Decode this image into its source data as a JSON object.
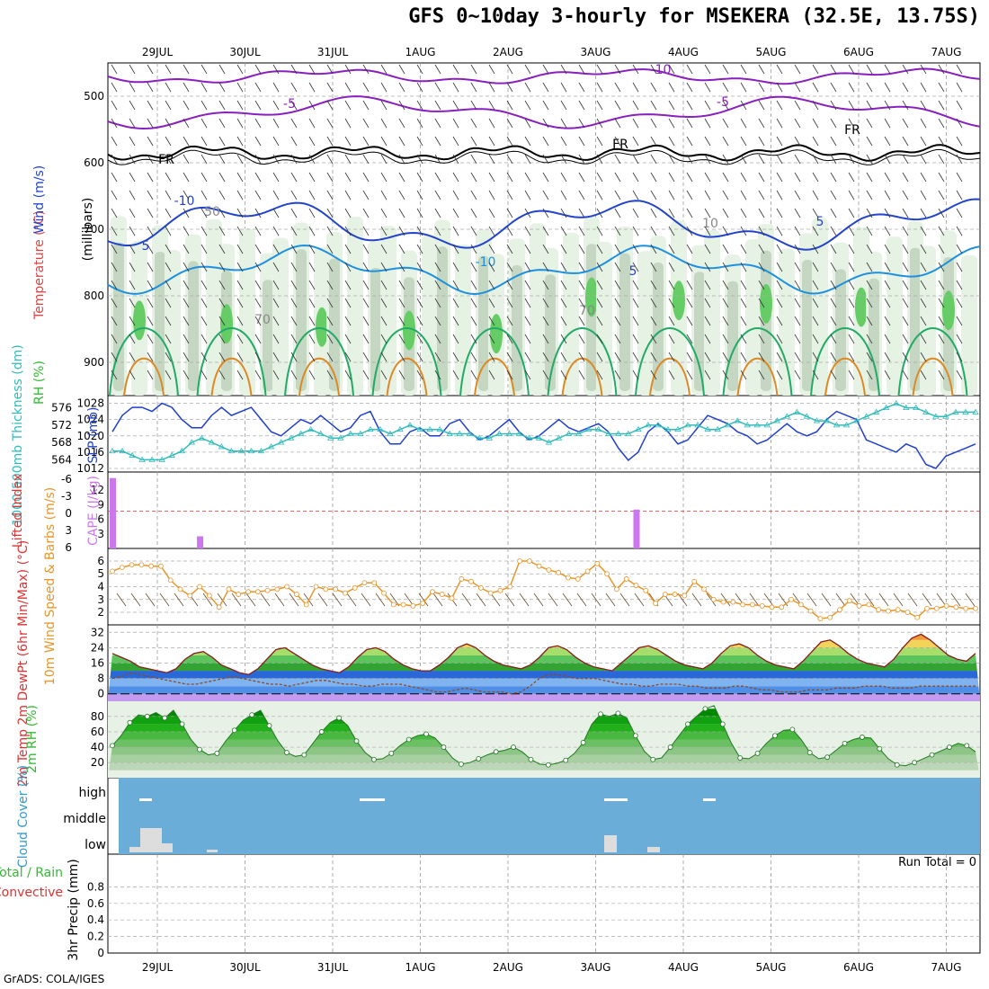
{
  "title": "GFS 0~10day 3-hourly for MSEKERA (32.5E, 13.75S)",
  "credit": "GrADS: COLA/IGES",
  "run_total": "Run Total = 0",
  "colors": {
    "wind500": "#8a1fbf",
    "freezing": "#000000",
    "temp_blue": "#2244cc",
    "temp_cyan": "#1e90e0",
    "temp_green": "#22aa66",
    "temp_orange": "#dd8822",
    "slp": "#1f3fcc",
    "thickness": "#33bbbb",
    "cape": "#cc77ee",
    "wind10": "#e8962a",
    "cloud_bg": "#6aadd8",
    "rh_green": "#33bb33"
  },
  "chart_data": [
    {
      "panel": "upper_air",
      "type": "heatmap",
      "ylabel_parts": [
        "RH (%)",
        "Temperature (°C)",
        "Wind (m/s)"
      ],
      "ylabel_right": "(millibars)",
      "x_labels": [
        "29JUL",
        "30JUL",
        "31JUL",
        "1AUG",
        "2AUG",
        "3AUG",
        "4AUG",
        "5AUG",
        "6AUG",
        "7AUG"
      ],
      "y_ticks": [
        500,
        600,
        700,
        800,
        900
      ],
      "ylim": [
        450,
        950
      ],
      "contour_labels": [
        "-10",
        "-5",
        "FR",
        "-10",
        "-5",
        "5",
        "-10",
        "5",
        "5",
        "50",
        "70",
        "70",
        "10",
        "FR",
        "FR"
      ]
    },
    {
      "panel": "slp_thickness",
      "type": "line",
      "ylabel_left": "1000-500mb Thickness (dm)",
      "ylabel_right": "SLP (mb)",
      "left_ticks": [
        564,
        568,
        572,
        576
      ],
      "right_ticks": [
        1012,
        1016,
        1020,
        1024,
        1028
      ],
      "series": [
        {
          "name": "SLP (mb)",
          "values": [
            1021,
            1025,
            1027,
            1027,
            1026,
            1028,
            1027,
            1024,
            1022,
            1022,
            1025,
            1027,
            1025,
            1026,
            1027,
            1024,
            1021,
            1020,
            1022,
            1024,
            1023,
            1025,
            1023,
            1021,
            1022,
            1025,
            1026,
            1021,
            1018,
            1018,
            1021,
            1022,
            1020,
            1020,
            1023,
            1024,
            1021,
            1019,
            1020,
            1022,
            1024,
            1021,
            1019,
            1020,
            1022,
            1024,
            1022,
            1021,
            1022,
            1023,
            1021,
            1017,
            1014,
            1016,
            1021,
            1023,
            1021,
            1018,
            1019,
            1022,
            1025,
            1024,
            1023,
            1021,
            1020,
            1018,
            1019,
            1021,
            1023,
            1021,
            1020,
            1021,
            1024,
            1026,
            1025,
            1024,
            1019,
            1018,
            1017,
            1016,
            1018,
            1017,
            1013,
            1012,
            1015,
            1016,
            1017,
            1018
          ]
        },
        {
          "name": "1000-500mb Thickness (dm)",
          "values": [
            566,
            566,
            565,
            564,
            564,
            564,
            565,
            566,
            568,
            569,
            568,
            567,
            566,
            566,
            566,
            566,
            567,
            568,
            569,
            570,
            571,
            570,
            569,
            569,
            570,
            570,
            571,
            571,
            570,
            571,
            572,
            571,
            571,
            571,
            570,
            570,
            570,
            569,
            569,
            570,
            570,
            570,
            569,
            569,
            568,
            569,
            570,
            570,
            571,
            571,
            570,
            570,
            570,
            571,
            572,
            572,
            571,
            571,
            572,
            572,
            571,
            571,
            572,
            573,
            572,
            572,
            572,
            573,
            574,
            575,
            574,
            573,
            573,
            572,
            572,
            573,
            574,
            575,
            576,
            577,
            576,
            576,
            575,
            574,
            574,
            575,
            575,
            575
          ]
        }
      ]
    },
    {
      "panel": "cape_li",
      "type": "bar",
      "ylabel_left": "Lifted Index",
      "ylabel_right": "CAPE (J/kg)",
      "left_ticks": [
        "-6",
        "-3",
        "0",
        "3",
        "6"
      ],
      "right_ticks": [
        3,
        6,
        9,
        12
      ],
      "series": [
        {
          "name": "CAPE (J/kg)",
          "values": [
            [
              0,
              14.5
            ],
            [
              9,
              2.5
            ],
            [
              54,
              8.0
            ]
          ]
        }
      ]
    },
    {
      "panel": "wind10",
      "type": "line",
      "ylabel": "10m Wind Speed & Barbs (m/s)",
      "yticks": [
        2,
        3,
        4,
        5,
        6
      ],
      "ylim": [
        1.3,
        6.7
      ],
      "series": [
        {
          "name": "10m Wind Speed",
          "values": [
            5.2,
            5.5,
            5.7,
            5.7,
            5.6,
            5.6,
            4.5,
            3.8,
            3.3,
            4.0,
            3.3,
            2.4,
            3.8,
            3.4,
            3.6,
            3.6,
            3.7,
            3.8,
            4.0,
            3.4,
            2.6,
            4.0,
            3.8,
            3.8,
            3.5,
            3.9,
            4.3,
            4.3,
            3.5,
            2.6,
            2.6,
            2.5,
            2.7,
            3.6,
            3.4,
            3.1,
            4.6,
            4.4,
            3.9,
            3.5,
            3.7,
            4.0,
            6.0,
            6.0,
            5.6,
            5.3,
            5.1,
            4.7,
            4.6,
            5.2,
            5.8,
            5.0,
            3.8,
            4.6,
            4.1,
            3.7,
            2.7,
            3.4,
            3.4,
            3.3,
            4.4,
            3.8,
            3.0,
            2.8,
            2.8,
            2.6,
            2.6,
            2.5,
            2.4,
            2.4,
            3.0,
            2.6,
            2.1,
            1.5,
            1.6,
            2.2,
            2.9,
            2.5,
            2.6,
            2.2,
            2.1,
            2.2,
            2.0,
            1.6,
            2.3,
            2.3,
            2.5,
            2.4,
            2.3,
            2.3
          ]
        }
      ]
    },
    {
      "panel": "temp",
      "type": "area",
      "ylabel": "2m Temp 2m DewPt (6hr Min/Max) (°C)",
      "yticks": [
        0,
        8,
        16,
        24,
        32
      ],
      "ylim": [
        -2,
        34
      ],
      "series": [
        {
          "name": "2m Temp",
          "values": [
            21,
            19,
            17,
            14,
            13,
            12,
            11,
            13,
            18,
            21,
            22,
            19,
            15,
            13,
            11,
            10,
            13,
            18,
            23,
            24,
            21,
            18,
            15,
            13,
            12,
            11,
            14,
            19,
            23,
            24,
            22,
            18,
            15,
            13,
            12,
            12,
            15,
            19,
            24,
            26,
            24,
            20,
            17,
            15,
            14,
            13,
            15,
            19,
            24,
            25,
            23,
            19,
            16,
            14,
            13,
            12,
            16,
            20,
            24,
            25,
            23,
            20,
            17,
            15,
            14,
            13,
            16,
            21,
            25,
            26,
            24,
            20,
            17,
            15,
            14,
            13,
            17,
            22,
            27,
            28,
            25,
            21,
            18,
            16,
            15,
            14,
            18,
            24,
            29,
            31,
            28,
            24,
            20,
            18,
            17,
            21
          ]
        },
        {
          "name": "2m DewPt",
          "values": [
            8,
            9,
            11,
            10,
            9,
            8,
            7,
            6,
            5,
            5,
            6,
            7,
            8,
            9,
            8,
            7,
            6,
            5,
            5,
            4,
            5,
            6,
            7,
            7,
            6,
            5,
            5,
            4,
            4,
            5,
            5,
            5,
            4,
            3,
            2,
            1,
            1,
            2,
            3,
            2,
            1,
            1,
            1,
            0,
            1,
            4,
            8,
            10,
            10,
            9,
            8,
            8,
            8,
            7,
            6,
            5,
            5,
            4,
            4,
            5,
            5,
            5,
            4,
            4,
            3,
            3,
            3,
            4,
            4,
            3,
            2,
            2,
            1,
            1,
            1,
            2,
            2,
            2,
            3,
            3,
            3,
            4,
            4,
            4,
            3,
            3,
            3,
            4,
            4,
            4,
            4,
            4,
            4,
            4
          ]
        }
      ]
    },
    {
      "panel": "rh",
      "type": "area",
      "ylabel": "2m RH (%)",
      "yticks": [
        20,
        40,
        60,
        80
      ],
      "ylim": [
        5,
        95
      ],
      "series": [
        {
          "name": "2m RH",
          "values": [
            42,
            55,
            72,
            82,
            80,
            85,
            78,
            88,
            70,
            50,
            37,
            30,
            32,
            48,
            62,
            75,
            82,
            88,
            68,
            48,
            33,
            28,
            30,
            45,
            60,
            72,
            78,
            68,
            48,
            33,
            24,
            25,
            32,
            42,
            50,
            55,
            57,
            52,
            40,
            26,
            18,
            20,
            25,
            30,
            34,
            36,
            40,
            34,
            24,
            18,
            17,
            19,
            23,
            32,
            46,
            70,
            83,
            80,
            84,
            78,
            55,
            35,
            24,
            26,
            40,
            55,
            70,
            80,
            90,
            94,
            70,
            45,
            26,
            25,
            32,
            45,
            55,
            62,
            63,
            50,
            33,
            25,
            27,
            36,
            45,
            50,
            53,
            52,
            38,
            25,
            17,
            16,
            20,
            25,
            30,
            35,
            40,
            45,
            42,
            34
          ]
        }
      ]
    },
    {
      "panel": "cloud",
      "type": "bar",
      "ylabel": "Cloud Cover (%)",
      "levels": [
        "high",
        "middle",
        "low"
      ]
    },
    {
      "panel": "precip",
      "type": "bar",
      "ylabel_parts": [
        "Total / Rain",
        "Convective",
        "3hr Precip (mm)"
      ],
      "yticks": [
        "0",
        "0.2",
        "0.4",
        "0.6",
        "0.8"
      ],
      "ylim": [
        0,
        1
      ],
      "series": [
        {
          "name": "3hr Precip",
          "values": []
        }
      ]
    }
  ]
}
